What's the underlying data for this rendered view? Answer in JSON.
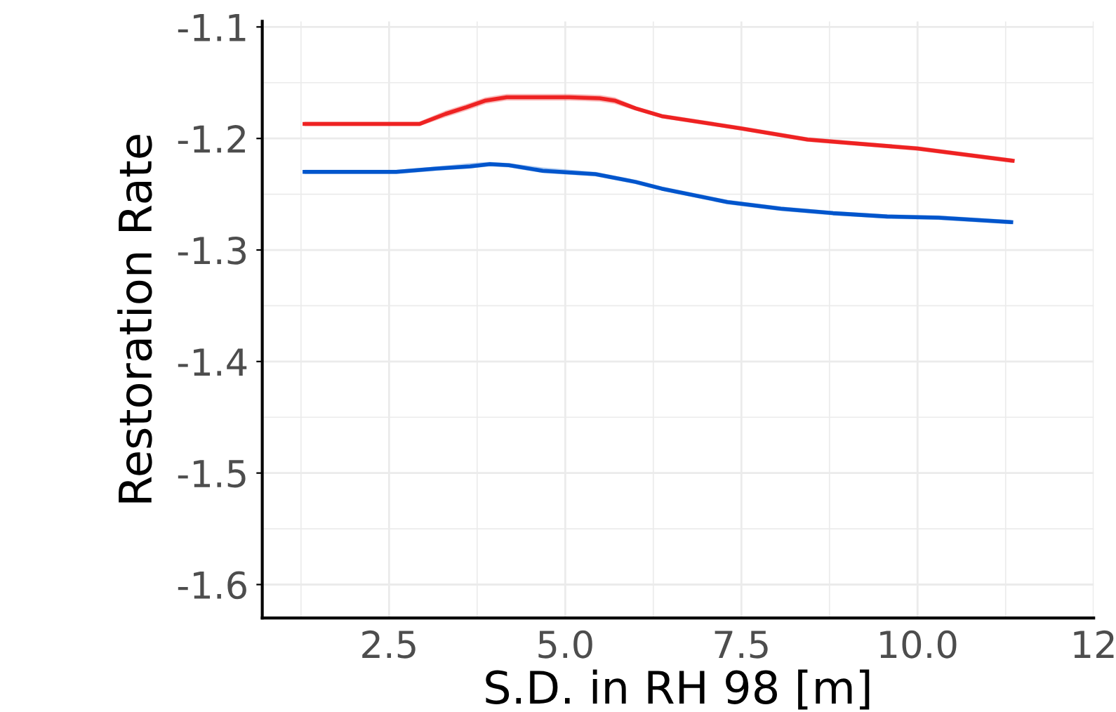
{
  "chart_data": {
    "type": "line",
    "xlabel": "S.D. in RH 98 [m]",
    "ylabel": "Restoration Rate",
    "xlim": [
      0.7,
      12.5
    ],
    "ylim": [
      -1.63,
      -1.095
    ],
    "xticks": [
      2.5,
      {
        "value": 5,
        "label": "5.0"
      },
      7.5,
      {
        "value": 10,
        "label": "10.0"
      },
      {
        "value": 12.5,
        "label": "12"
      }
    ],
    "yticks": [
      {
        "value": -1.6,
        "label": "-1.6"
      },
      {
        "value": -1.5,
        "label": "-1.5"
      },
      {
        "value": -1.4,
        "label": "-1.4"
      },
      {
        "value": -1.3,
        "label": "-1.3"
      },
      {
        "value": -1.2,
        "label": "-1.2"
      },
      {
        "value": -1.1,
        "label": "-1.1"
      }
    ],
    "grid": true,
    "legend": false,
    "line_style": "solid",
    "marker": "none",
    "series": [
      {
        "color": "#ee2222",
        "x": [
          1.3,
          2.93,
          3.3,
          3.6,
          3.87,
          4.17,
          4.68,
          5.06,
          5.49,
          5.7,
          6.0,
          6.37,
          7.5,
          8.44,
          10.0,
          11.35
        ],
        "values": [
          -1.187,
          -1.187,
          -1.178,
          -1.172,
          -1.166,
          -1.163,
          -1.163,
          -1.163,
          -1.164,
          -1.166,
          -1.173,
          -1.18,
          -1.191,
          -1.201,
          -1.209,
          -1.22
        ],
        "lower": [
          -1.189,
          -1.189,
          -1.181,
          -1.175,
          -1.169,
          -1.166,
          -1.166,
          -1.166,
          -1.167,
          -1.169,
          -1.175,
          -1.182,
          -1.193,
          -1.203,
          -1.211,
          -1.222
        ],
        "upper": [
          -1.185,
          -1.185,
          -1.175,
          -1.169,
          -1.163,
          -1.16,
          -1.16,
          -1.16,
          -1.161,
          -1.163,
          -1.171,
          -1.178,
          -1.189,
          -1.199,
          -1.207,
          -1.218
        ]
      },
      {
        "color": "#0055cc",
        "x": [
          1.3,
          2.6,
          3.18,
          3.65,
          3.93,
          4.2,
          4.68,
          5.43,
          6.0,
          6.37,
          7.3,
          8.06,
          8.8,
          9.57,
          10.3,
          11.33
        ],
        "values": [
          -1.23,
          -1.23,
          -1.227,
          -1.225,
          -1.223,
          -1.224,
          -1.229,
          -1.232,
          -1.239,
          -1.245,
          -1.257,
          -1.263,
          -1.267,
          -1.27,
          -1.271,
          -1.275
        ],
        "lower": [
          -1.232,
          -1.232,
          -1.229,
          -1.227,
          -1.225,
          -1.226,
          -1.231,
          -1.234,
          -1.241,
          -1.247,
          -1.259,
          -1.265,
          -1.269,
          -1.272,
          -1.273,
          -1.277
        ],
        "upper": [
          -1.228,
          -1.228,
          -1.225,
          -1.222,
          -1.221,
          -1.222,
          -1.226,
          -1.23,
          -1.237,
          -1.243,
          -1.255,
          -1.261,
          -1.265,
          -1.268,
          -1.269,
          -1.273
        ]
      }
    ]
  }
}
